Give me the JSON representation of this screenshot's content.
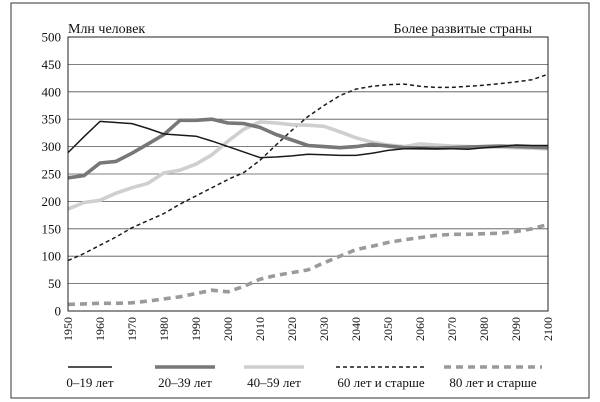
{
  "chart_data": {
    "type": "line",
    "title_left": "Млн человек",
    "title_right": "Более развитые страны",
    "x": [
      1950,
      1955,
      1960,
      1965,
      1970,
      1975,
      1980,
      1985,
      1990,
      1995,
      2000,
      2005,
      2010,
      2015,
      2020,
      2025,
      2030,
      2035,
      2040,
      2045,
      2050,
      2055,
      2060,
      2065,
      2070,
      2075,
      2080,
      2085,
      2090,
      2095,
      2100
    ],
    "x_ticks": [
      "1950",
      "1960",
      "1970",
      "1980",
      "1990",
      "2000",
      "2010",
      "2020",
      "2030",
      "2040",
      "2050",
      "2060",
      "2070",
      "2080",
      "2090",
      "2100"
    ],
    "y_ticks": [
      "0",
      "50",
      "100",
      "150",
      "200",
      "250",
      "300",
      "350",
      "400",
      "450",
      "500"
    ],
    "ylim": [
      0,
      500
    ],
    "xlim": [
      1950,
      2100
    ],
    "grid": "horizontal",
    "legend_position": "bottom",
    "series": [
      {
        "name": "0–19 лет",
        "color": "#1a1a1a",
        "style": "solid-thin",
        "values": [
          289,
          318,
          346,
          344,
          342,
          333,
          323,
          321,
          319,
          310,
          300,
          290,
          280,
          281,
          283,
          286,
          285,
          284,
          284,
          288,
          293,
          296,
          297,
          296,
          296,
          295,
          298,
          300,
          303,
          302,
          302
        ]
      },
      {
        "name": "20–39 лет",
        "color": "#777777",
        "style": "solid-thick",
        "values": [
          243,
          247,
          270,
          273,
          288,
          305,
          322,
          348,
          348,
          350,
          343,
          342,
          335,
          322,
          312,
          302,
          300,
          298,
          300,
          304,
          301,
          298,
          297,
          297,
          298,
          299,
          300,
          301,
          300,
          299,
          298
        ]
      },
      {
        "name": "40–59 лет",
        "color": "#cfcfcf",
        "style": "solid-thick",
        "values": [
          186,
          198,
          202,
          215,
          225,
          233,
          252,
          257,
          268,
          285,
          310,
          332,
          345,
          343,
          340,
          339,
          337,
          327,
          316,
          308,
          303,
          300,
          305,
          303,
          301,
          300,
          299,
          299,
          298,
          297,
          296
        ]
      },
      {
        "name": "60 лет и старше",
        "color": "#1a1a1a",
        "style": "dashed-thin",
        "values": [
          92,
          105,
          120,
          135,
          152,
          165,
          178,
          195,
          210,
          225,
          240,
          253,
          275,
          303,
          330,
          355,
          375,
          393,
          405,
          410,
          413,
          414,
          410,
          408,
          408,
          410,
          412,
          415,
          418,
          422,
          432
        ]
      },
      {
        "name": "80 лет и старше",
        "color": "#9a9a9a",
        "style": "dashed-thick",
        "values": [
          12,
          13,
          14,
          14,
          15,
          18,
          22,
          26,
          32,
          38,
          35,
          45,
          58,
          65,
          70,
          75,
          88,
          100,
          112,
          118,
          125,
          130,
          134,
          138,
          140,
          140,
          141,
          142,
          145,
          150,
          158
        ]
      }
    ]
  }
}
